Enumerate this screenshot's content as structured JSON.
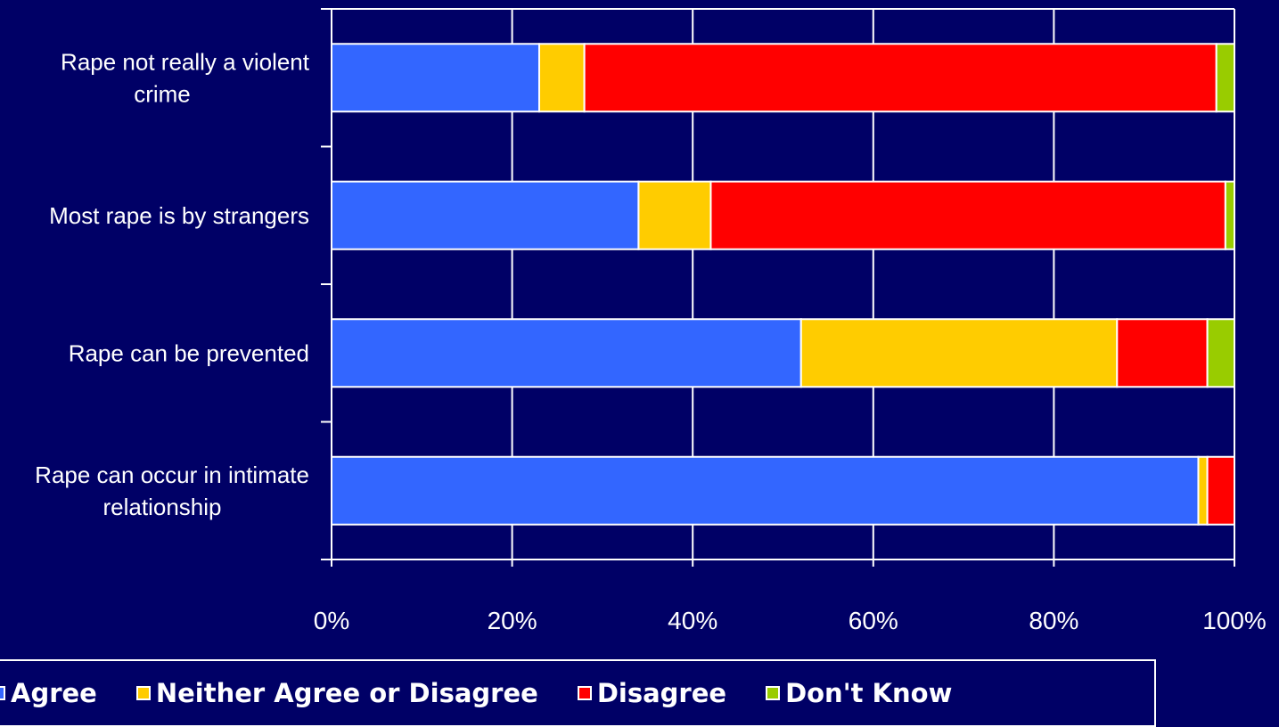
{
  "chart_data": {
    "type": "bar",
    "orientation": "horizontal",
    "stacked": true,
    "categories": [
      "Rape not really a violent crime",
      "Most rape is by strangers",
      "Rape can be prevented",
      "Rape can occur in intimate relationship"
    ],
    "series": [
      {
        "name": "Agree",
        "color": "#3366ff",
        "values": [
          23,
          34,
          52,
          96
        ]
      },
      {
        "name": "Neither Agree or Disagree",
        "color": "#ffcc00",
        "values": [
          5,
          8,
          35,
          1
        ]
      },
      {
        "name": "Disagree",
        "color": "#ff0000",
        "values": [
          70,
          57,
          10,
          3
        ]
      },
      {
        "name": "Don't Know",
        "color": "#99cc00",
        "values": [
          2,
          1,
          3,
          0
        ]
      }
    ],
    "x_ticks": [
      "0%",
      "20%",
      "40%",
      "60%",
      "80%",
      "100%"
    ],
    "xlim": [
      0,
      100
    ],
    "grid": true,
    "legend_position": "bottom",
    "colors": {
      "background": "#000066",
      "axis": "#ffffff"
    }
  }
}
